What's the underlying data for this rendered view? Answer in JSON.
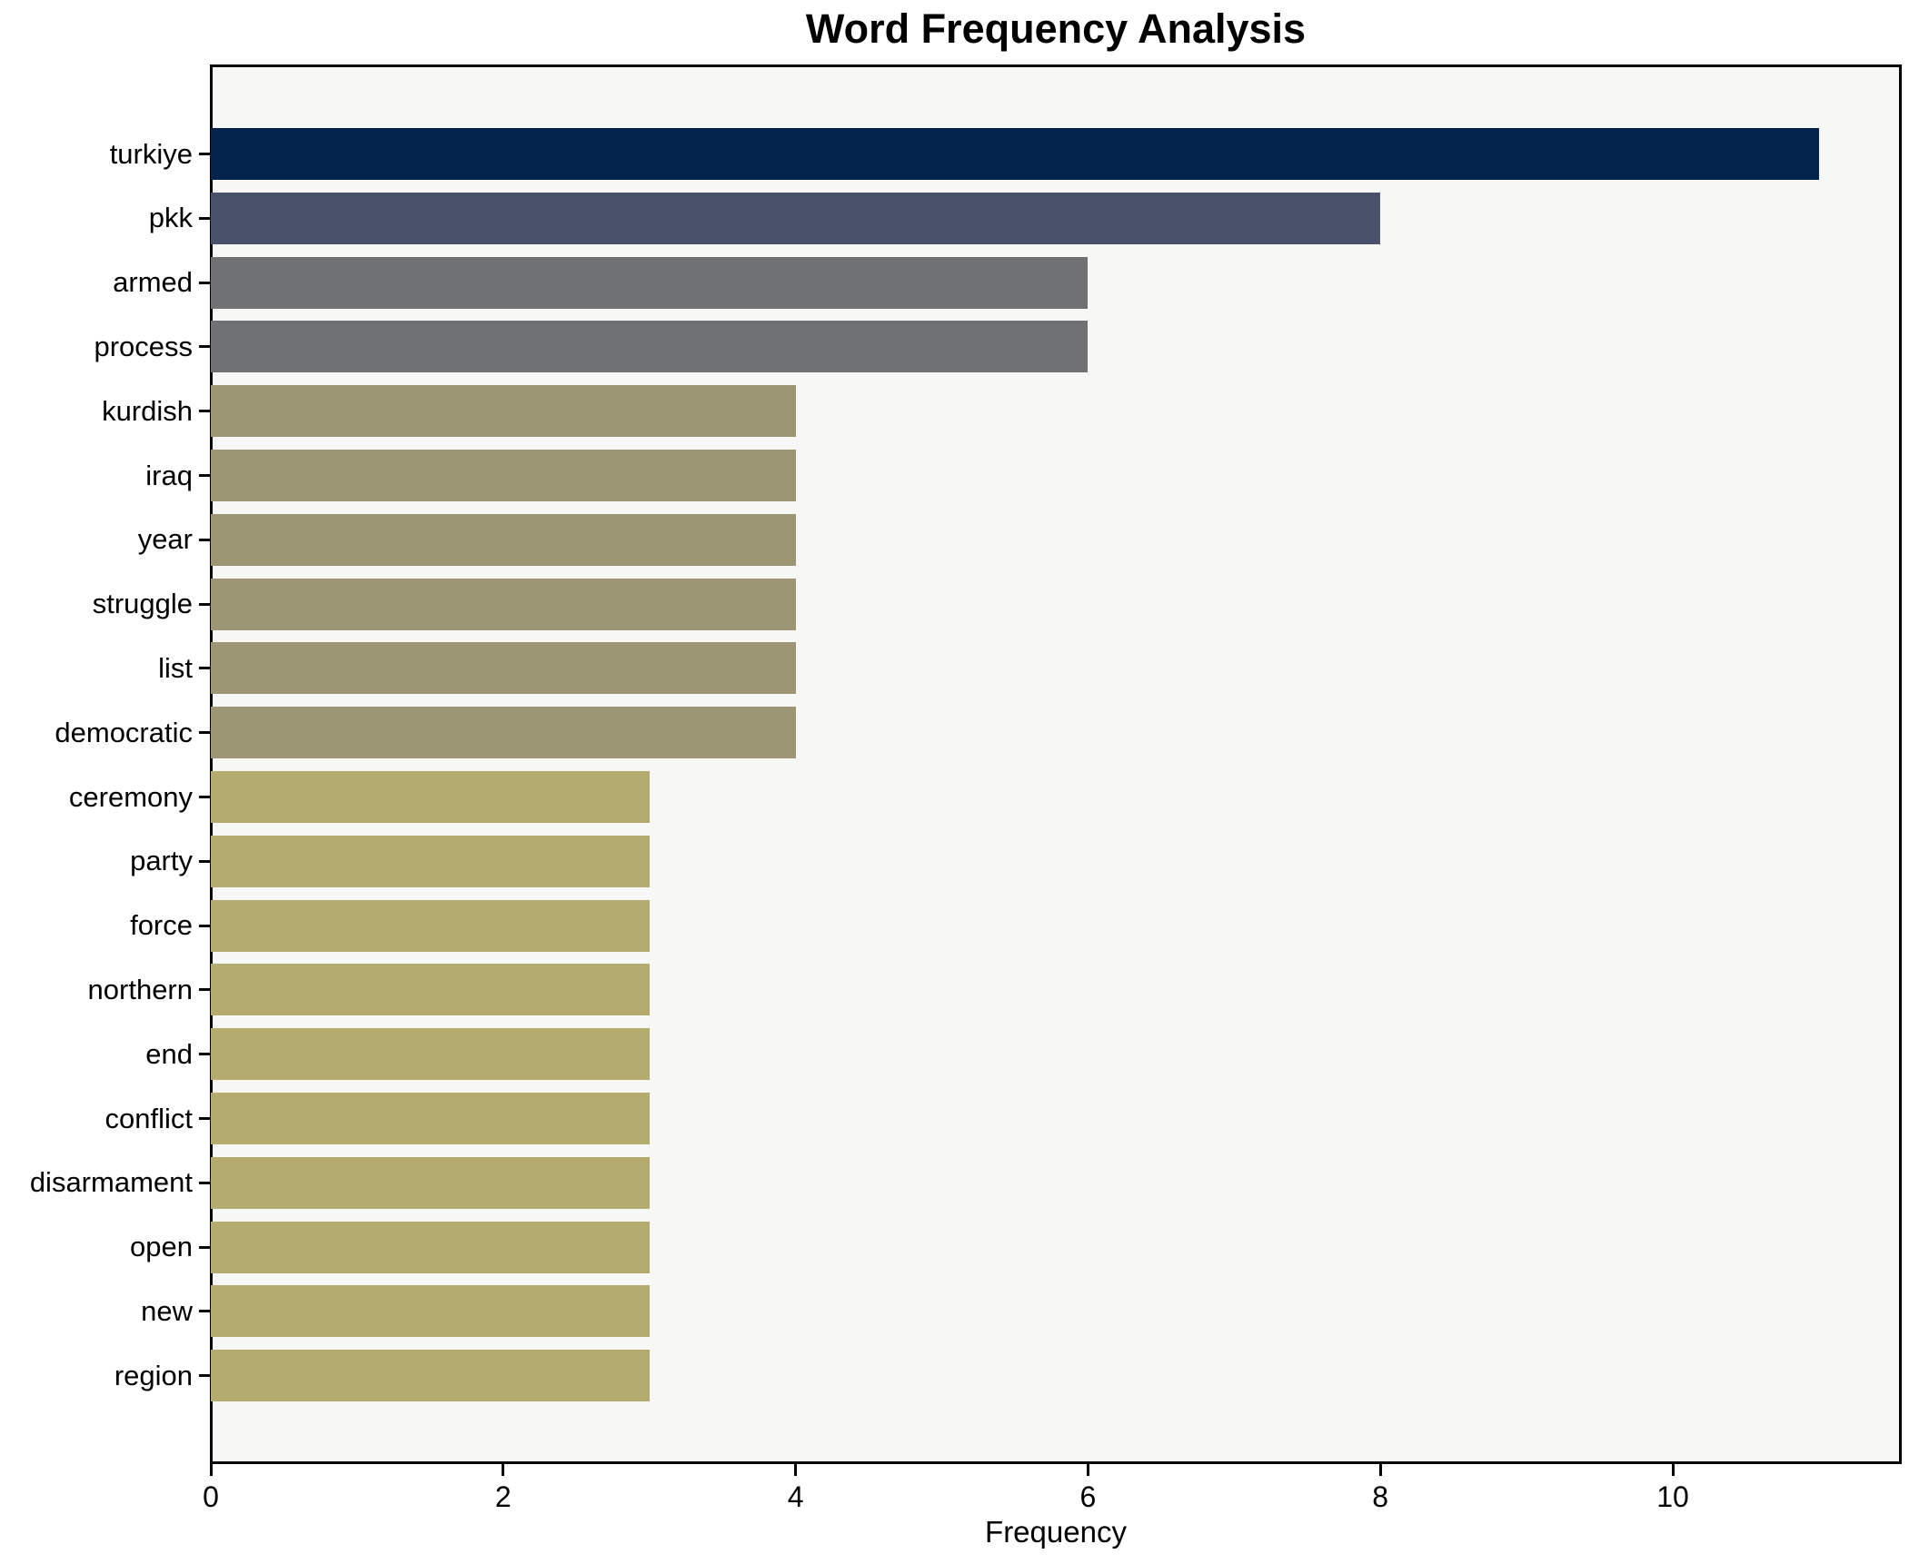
{
  "title": "Word Frequency Analysis",
  "xlabel": "Frequency",
  "colors": {
    "page_background": "#ffffff",
    "plot_background": "#f7f7f5",
    "axis": "#000000",
    "text": "#000000"
  },
  "chart_data": {
    "type": "bar",
    "orientation": "horizontal",
    "title": "Word Frequency Analysis",
    "xlabel": "Frequency",
    "ylabel": "",
    "grid": false,
    "legend": false,
    "xlim": [
      0,
      11.57
    ],
    "x_ticks": [
      0,
      2,
      4,
      6,
      8,
      10
    ],
    "categories": [
      "turkiye",
      "pkk",
      "armed",
      "process",
      "kurdish",
      "iraq",
      "year",
      "struggle",
      "list",
      "democratic",
      "ceremony",
      "party",
      "force",
      "northern",
      "end",
      "conflict",
      "disarmament",
      "open",
      "new",
      "region"
    ],
    "values": [
      11,
      8,
      6,
      6,
      4,
      4,
      4,
      4,
      4,
      4,
      3,
      3,
      3,
      3,
      3,
      3,
      3,
      3,
      3,
      3
    ],
    "bar_colors": [
      "#02234c",
      "#485169",
      "#707173",
      "#707173",
      "#9d9675",
      "#9d9675",
      "#9d9675",
      "#9d9675",
      "#9d9675",
      "#9d9675",
      "#b4ab6e",
      "#b4ab6e",
      "#b4ab6e",
      "#b4ab6e",
      "#b4ab6e",
      "#b4ab6e",
      "#b4ab6e",
      "#b4ab6e",
      "#b4ab6e",
      "#b4ab6e"
    ]
  }
}
